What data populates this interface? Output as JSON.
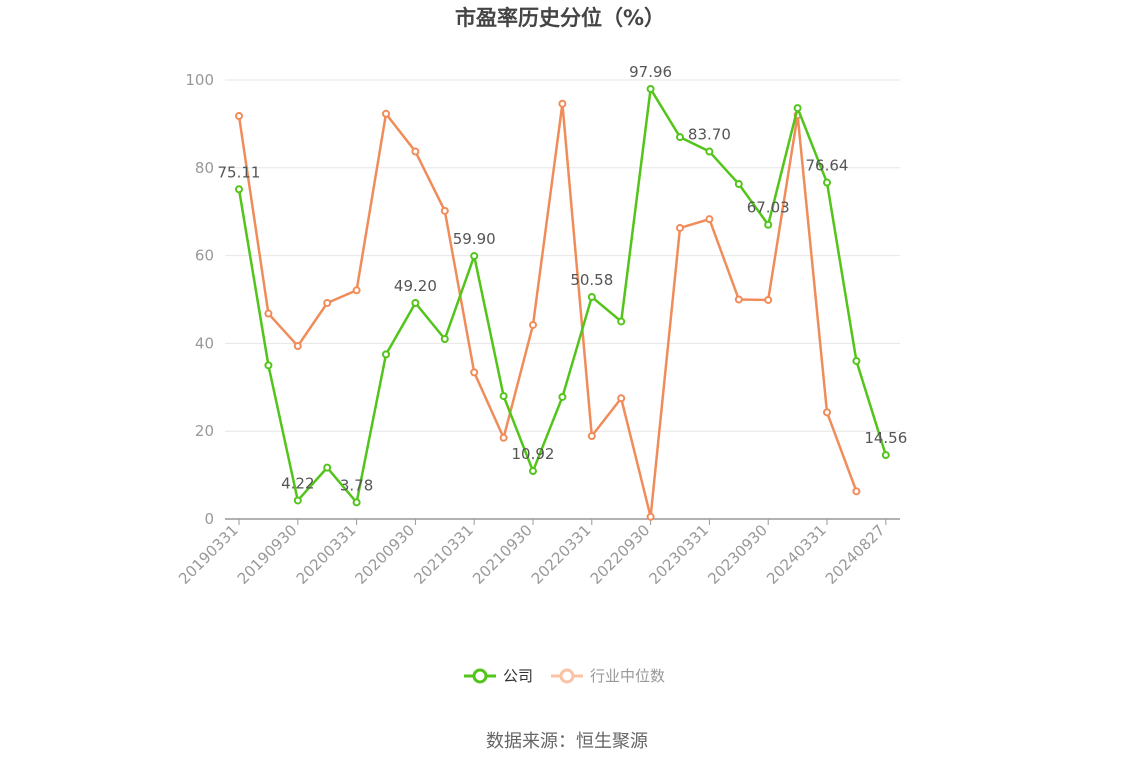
{
  "chart_data": {
    "type": "line",
    "title": "市盈率历史分位（%）",
    "ylim": [
      0,
      100
    ],
    "yticks": [
      "0",
      "20",
      "40",
      "60",
      "80",
      "100"
    ],
    "x_tick_labels": [
      "20190331",
      "20190930",
      "20200331",
      "20200930",
      "20210331",
      "20210930",
      "20220331",
      "20220930",
      "20230331",
      "20230930",
      "20240331",
      "20240827"
    ],
    "x": [
      "20190331",
      "20190630",
      "20190930",
      "20191231",
      "20200331",
      "20200630",
      "20200930",
      "20201231",
      "20210331",
      "20210630",
      "20210930",
      "20211231",
      "20220331",
      "20220630",
      "20220930",
      "20221231",
      "20230331",
      "20230630",
      "20230930",
      "20231231",
      "20240331",
      "20240630",
      "20240827"
    ],
    "series": [
      {
        "name": "公司",
        "color": "#52c41a",
        "values": [
          75.11,
          35.0,
          4.22,
          11.7,
          3.78,
          37.5,
          49.2,
          41.0,
          59.9,
          28.0,
          10.92,
          27.8,
          50.58,
          45.0,
          97.96,
          87.0,
          83.7,
          76.3,
          67.03,
          93.6,
          76.64,
          36.0,
          14.56
        ],
        "labels": [
          "75.11",
          "",
          "4.22",
          "",
          "3.78",
          "",
          "49.20",
          "",
          "59.90",
          "",
          "10.92",
          "",
          "50.58",
          "",
          "97.96",
          "",
          "83.70",
          "",
          "67.03",
          "",
          "76.64",
          "",
          "14.56"
        ]
      },
      {
        "name": "行业中位数",
        "color": "#f08c5a",
        "values": [
          91.8,
          46.8,
          39.4,
          49.2,
          52.1,
          92.3,
          83.7,
          70.2,
          33.4,
          18.5,
          44.2,
          94.6,
          18.9,
          27.5,
          0.5,
          66.3,
          68.3,
          50.0,
          49.9,
          92.0,
          24.3,
          6.3,
          null
        ]
      }
    ],
    "legend": {
      "position": "bottom",
      "items": [
        "公司",
        "行业中位数"
      ]
    },
    "grid": true,
    "source": "数据来源：恒生聚源"
  }
}
